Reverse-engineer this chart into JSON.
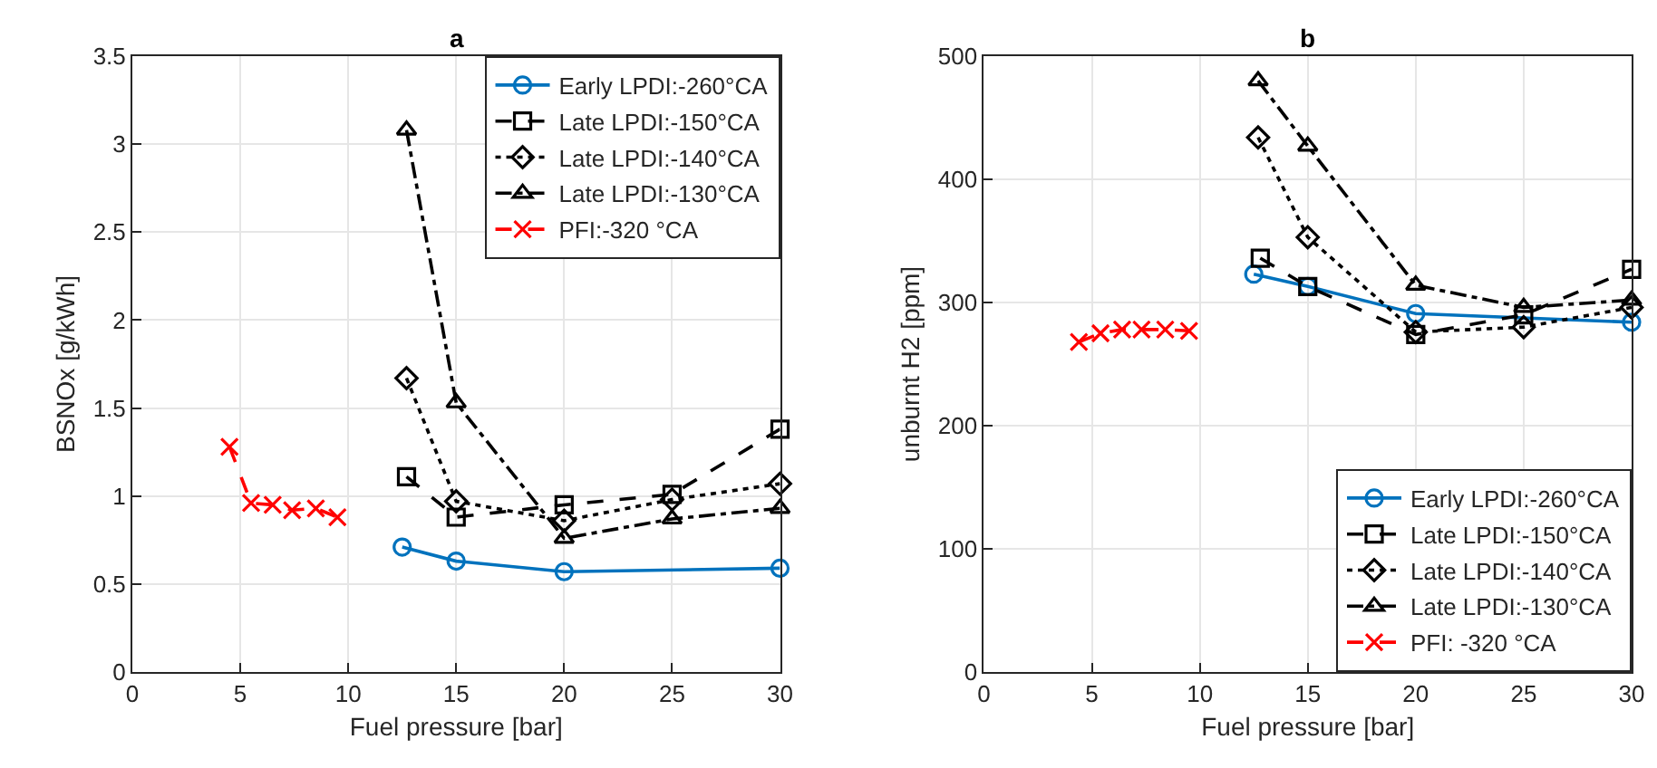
{
  "chart_data": [
    {
      "type": "line",
      "title": "a",
      "xlabel": "Fuel pressure [bar]",
      "ylabel": "BSNOx [g/kWh]",
      "xlim": [
        0,
        30
      ],
      "xticks": [
        0,
        5,
        10,
        15,
        20,
        25,
        30
      ],
      "ylim": [
        0,
        3.5
      ],
      "yticks": [
        0,
        0.5,
        1,
        1.5,
        2,
        2.5,
        3,
        3.5
      ],
      "grid": true,
      "legend": "top right",
      "series": [
        {
          "name": "Early LPDI:-260°CA",
          "color": "#0072bd",
          "marker": "circle",
          "line_style": "solid",
          "x": [
            12.5,
            15,
            20,
            30
          ],
          "values": [
            0.71,
            0.63,
            0.57,
            0.59
          ]
        },
        {
          "name": "Late LPDI:-150°CA",
          "color": "#000000",
          "marker": "square",
          "line_style": "dashed",
          "x": [
            12.7,
            15,
            20,
            25,
            30
          ],
          "values": [
            1.11,
            0.88,
            0.95,
            1.01,
            1.38
          ]
        },
        {
          "name": "Late LPDI:-140°CA",
          "color": "#000000",
          "marker": "diamond",
          "line_style": "dotted",
          "x": [
            12.7,
            15,
            20,
            25,
            30
          ],
          "values": [
            1.67,
            0.97,
            0.86,
            0.98,
            1.07
          ]
        },
        {
          "name": "Late LPDI:-130°CA",
          "color": "#000000",
          "marker": "triangle",
          "line_style": "dashdot",
          "x": [
            12.7,
            15,
            20,
            25,
            30
          ],
          "values": [
            3.08,
            1.53,
            0.76,
            0.87,
            0.93
          ]
        },
        {
          "name": "PFI:-320 °CA",
          "color": "#ff0000",
          "marker": "cross",
          "line_style": "dashed",
          "x": [
            4.5,
            5.5,
            6.5,
            7.4,
            8.5,
            9.5
          ],
          "values": [
            1.28,
            0.96,
            0.95,
            0.92,
            0.93,
            0.88
          ]
        }
      ]
    },
    {
      "type": "line",
      "title": "b",
      "xlabel": "Fuel pressure [bar]",
      "ylabel": "unburnt H2 [ppm]",
      "xlim": [
        0,
        30
      ],
      "xticks": [
        0,
        5,
        10,
        15,
        20,
        25,
        30
      ],
      "ylim": [
        0,
        500
      ],
      "yticks": [
        0,
        100,
        200,
        300,
        400,
        500
      ],
      "grid": true,
      "legend": "bottom right",
      "series": [
        {
          "name": "Early LPDI:-260°CA",
          "color": "#0072bd",
          "marker": "circle",
          "line_style": "solid",
          "x": [
            12.5,
            15,
            20,
            30
          ],
          "values": [
            323,
            313,
            291,
            284
          ]
        },
        {
          "name": "Late LPDI:-150°CA",
          "color": "#000000",
          "marker": "square",
          "line_style": "dashed",
          "x": [
            12.8,
            15,
            20,
            25,
            30
          ],
          "values": [
            336,
            313,
            274,
            290,
            327
          ]
        },
        {
          "name": "Late LPDI:-140°CA",
          "color": "#000000",
          "marker": "diamond",
          "line_style": "dotted",
          "x": [
            12.7,
            15,
            20,
            25,
            30
          ],
          "values": [
            434,
            353,
            276,
            280,
            296
          ]
        },
        {
          "name": "Late LPDI:-130°CA",
          "color": "#000000",
          "marker": "triangle",
          "line_style": "dashdot",
          "x": [
            12.7,
            15,
            20,
            25,
            30
          ],
          "values": [
            480,
            427,
            314,
            296,
            302
          ]
        },
        {
          "name": "PFI: -320 °CA",
          "color": "#ff0000",
          "marker": "cross",
          "line_style": "dashed",
          "x": [
            4.4,
            5.4,
            6.4,
            7.3,
            8.4,
            9.5
          ],
          "values": [
            268,
            275,
            278,
            278,
            278,
            277
          ]
        }
      ]
    }
  ]
}
